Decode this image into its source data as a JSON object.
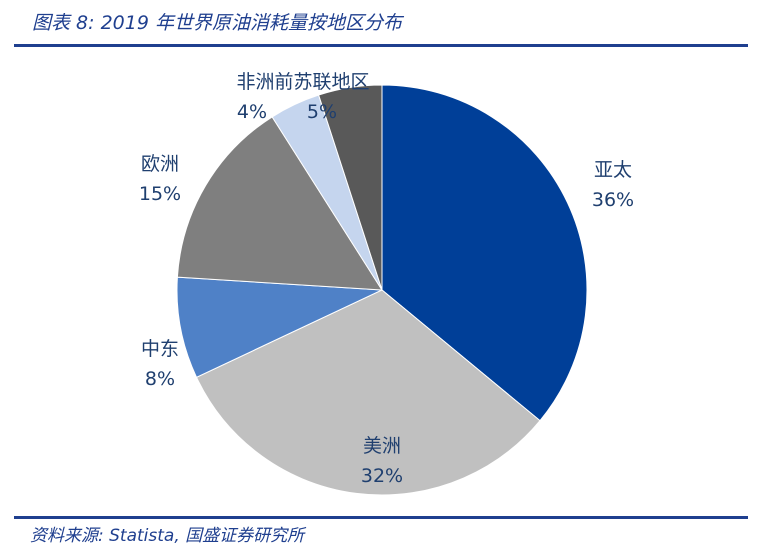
{
  "figure": {
    "title": "图表 8:  2019 年世界原油消耗量按地区分布",
    "source": "资料来源:  Statista,  国盛证券研究所"
  },
  "chart_data": {
    "type": "pie",
    "title": "",
    "labels": [
      "亚太",
      "美洲",
      "中东",
      "欧洲",
      "非洲",
      "前苏联地区"
    ],
    "values": [
      36,
      32,
      8,
      15,
      4,
      5
    ],
    "value_labels": [
      "36%",
      "32%",
      "8%",
      "15%",
      "4%",
      "5%"
    ],
    "unit": "%",
    "colors": [
      "#003f98",
      "#c0c0c0",
      "#4f81c7",
      "#7f7f7f",
      "#c5d5ee",
      "#595959"
    ],
    "start_angle_deg": 0,
    "direction": "clockwise"
  }
}
